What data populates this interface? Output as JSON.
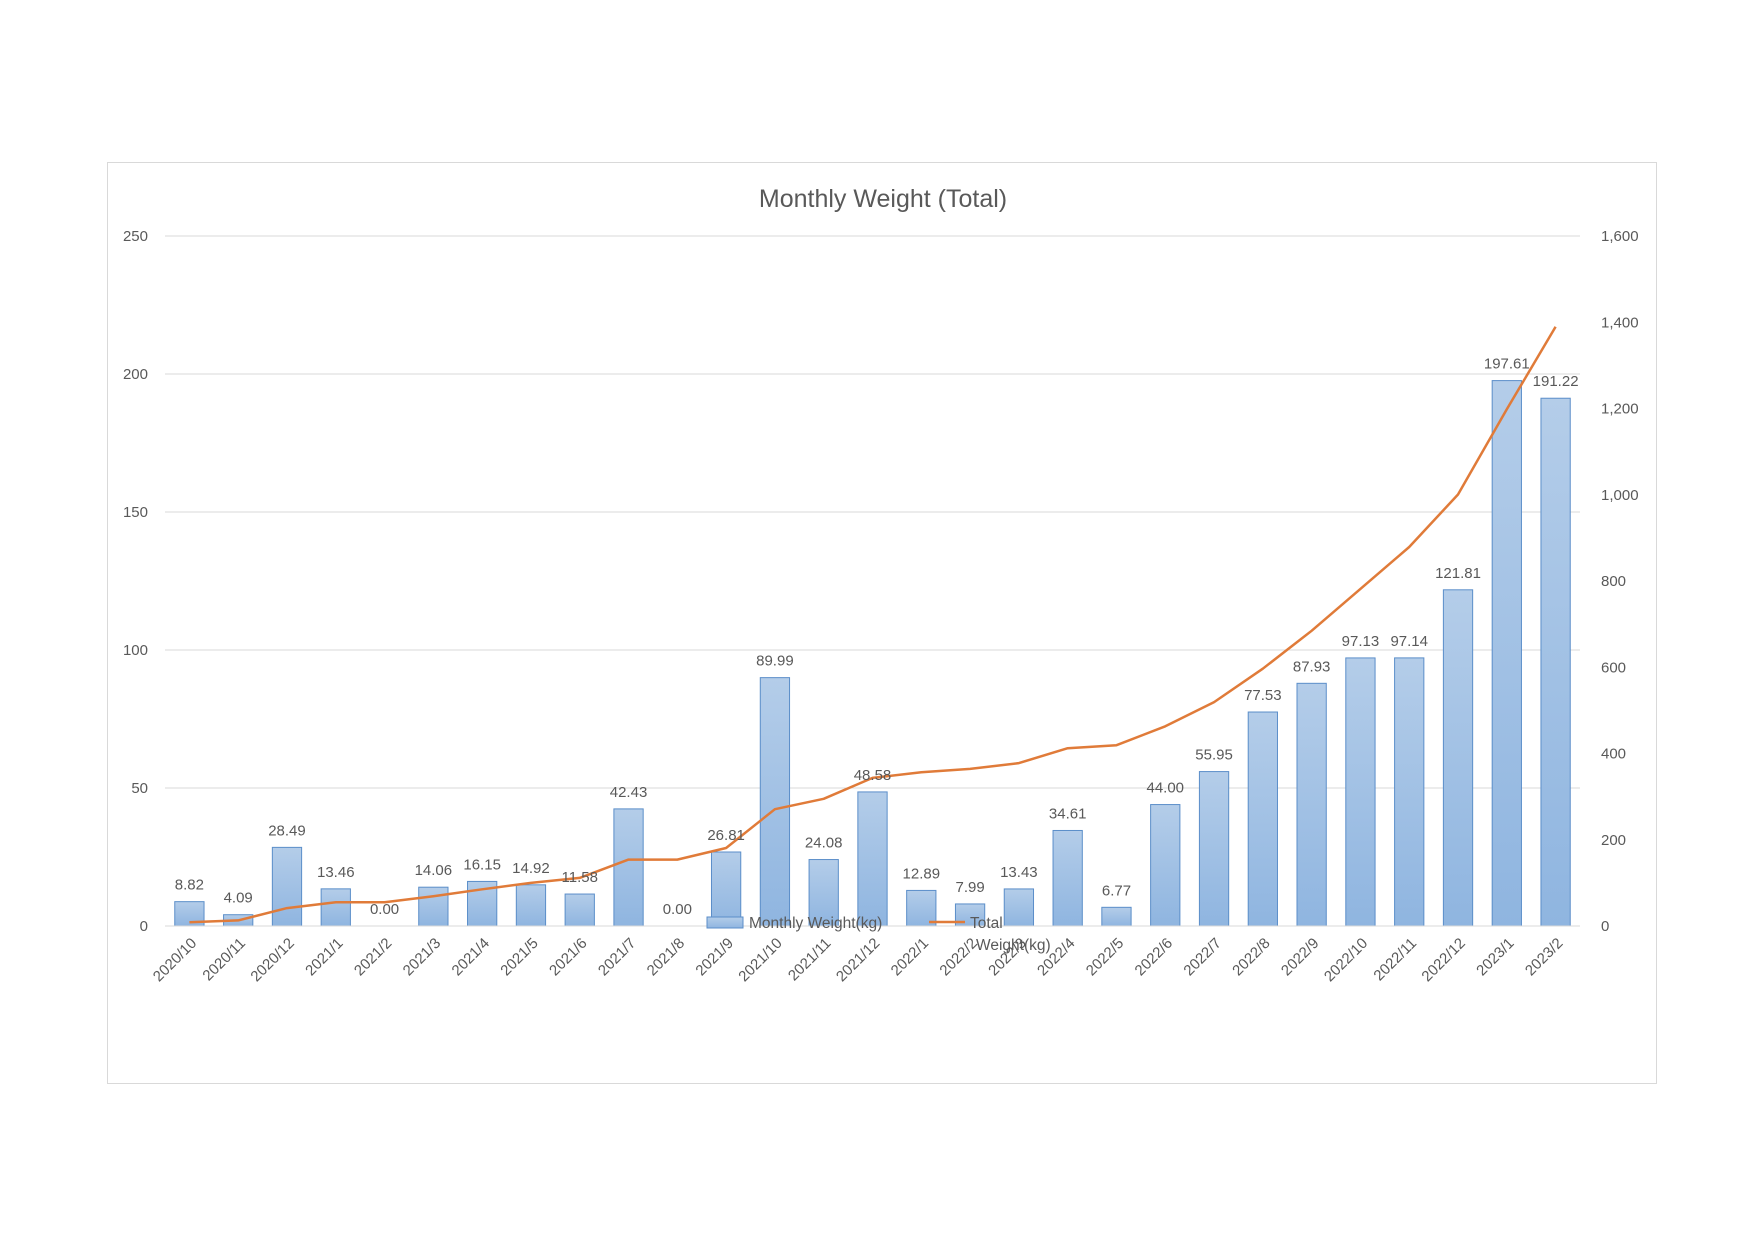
{
  "chart_data": {
    "type": "bar",
    "title": "Monthly Weight (Total)",
    "categories": [
      "2020/10",
      "2020/11",
      "2020/12",
      "2021/1",
      "2021/2",
      "2021/3",
      "2021/4",
      "2021/5",
      "2021/6",
      "2021/7",
      "2021/8",
      "2021/9",
      "2021/10",
      "2021/11",
      "2021/12",
      "2022/1",
      "2022/2",
      "2022/3",
      "2022/4",
      "2022/5",
      "2022/6",
      "2022/7",
      "2022/8",
      "2022/9",
      "2022/10",
      "2022/11",
      "2022/12",
      "2023/1",
      "2023/2"
    ],
    "series": [
      {
        "name": "Monthly Weight(kg)",
        "type": "bar",
        "axis": "left",
        "color": "#9dc3e6",
        "values": [
          8.82,
          4.09,
          28.49,
          13.46,
          0.0,
          14.06,
          16.15,
          14.92,
          11.58,
          42.43,
          0.0,
          26.81,
          89.99,
          24.08,
          48.58,
          12.89,
          7.99,
          13.43,
          34.61,
          6.77,
          44.0,
          55.95,
          77.53,
          87.93,
          97.13,
          97.14,
          121.81,
          197.61,
          191.22
        ],
        "labels": [
          "8.82",
          "4.09",
          "28.49",
          "13.46",
          "0.00",
          "14.06",
          "16.15",
          "14.92",
          "11.58",
          "42.43",
          "0.00",
          "26.81",
          "89.99",
          "24.08",
          "48.58",
          "12.89",
          "7.99",
          "13.43",
          "34.61",
          "6.77",
          "44.00",
          "55.95",
          "77.53",
          "87.93",
          "97.13",
          "97.14",
          "121.81",
          "197.61",
          "191.22"
        ]
      },
      {
        "name": "Total Weight(kg)",
        "name_lines": [
          "Total",
          "Weight(kg)"
        ],
        "type": "line",
        "axis": "right",
        "color": "#e07b39",
        "values": [
          8.82,
          12.91,
          41.4,
          54.86,
          54.86,
          68.92,
          85.07,
          99.99,
          111.57,
          154.0,
          154.0,
          180.81,
          270.8,
          294.88,
          343.46,
          356.35,
          364.34,
          377.77,
          412.38,
          419.15,
          463.15,
          519.1,
          596.63,
          684.56,
          781.69,
          878.83,
          1000.64,
          1198.25,
          1389.47
        ]
      }
    ],
    "y_left": {
      "ylim": [
        0,
        250
      ],
      "ticks": [
        0,
        50,
        100,
        150,
        200,
        250
      ],
      "tick_labels": [
        "0",
        "50",
        "100",
        "150",
        "200",
        "250"
      ]
    },
    "y_right": {
      "ylim": [
        0,
        1600
      ],
      "ticks": [
        0,
        200,
        400,
        600,
        800,
        1000,
        1200,
        1400,
        1600
      ],
      "tick_labels": [
        "0",
        "200",
        "400",
        "600",
        "800",
        "1,000",
        "1,200",
        "1,400",
        "1,600"
      ]
    },
    "grid": true,
    "legend": "bottom"
  }
}
